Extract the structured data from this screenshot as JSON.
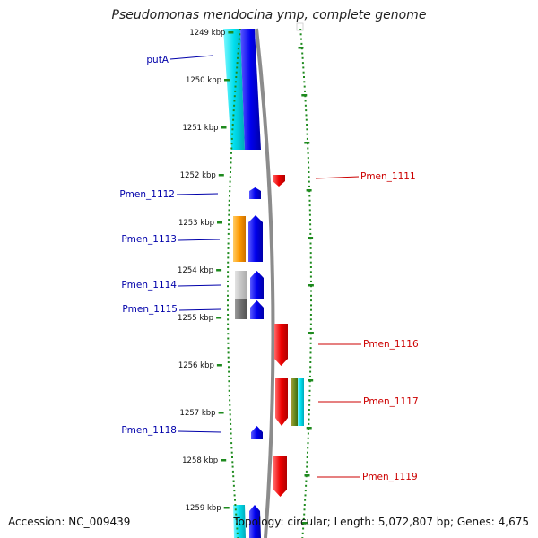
{
  "title": "Pseudomonas mendocina ymp, complete genome",
  "accession": "Accession: NC_009439",
  "topology": "Topology: circular; Length: 5,072,807 bp; Genes: 4,675",
  "colors": {
    "ruler": "#1e8a1e",
    "backbone": "#8a8a8a",
    "forward_gene": "#0000ee",
    "reverse_gene": "#ee0000",
    "forward_label": "#0000aa",
    "reverse_label": "#cc0000",
    "cyan_feature": "#00e0ee",
    "orange_feature": "#ff9900",
    "grey_feature": "#aaaaaa"
  },
  "ticks": [
    "1249 kbp",
    "1250 kbp",
    "1251 kbp",
    "1252 kbp",
    "1253 kbp",
    "1254 kbp",
    "1255 kbp",
    "1256 kbp",
    "1257 kbp",
    "1258 kbp",
    "1259 kbp"
  ],
  "genes_left": [
    {
      "id": "left-putA",
      "label": "putA"
    },
    {
      "id": "left-1112",
      "label": "Pmen_1112"
    },
    {
      "id": "left-1113",
      "label": "Pmen_1113"
    },
    {
      "id": "left-1114",
      "label": "Pmen_1114"
    },
    {
      "id": "left-1115",
      "label": "Pmen_1115"
    },
    {
      "id": "left-1118",
      "label": "Pmen_1118"
    }
  ],
  "genes_right": [
    {
      "id": "right-1111",
      "label": "Pmen_1111"
    },
    {
      "id": "right-1116",
      "label": "Pmen_1116"
    },
    {
      "id": "right-1117",
      "label": "Pmen_1117"
    },
    {
      "id": "right-1119",
      "label": "Pmen_1119"
    }
  ]
}
